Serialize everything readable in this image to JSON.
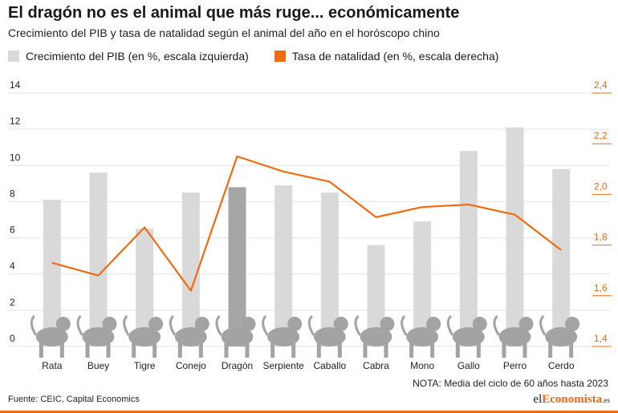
{
  "header": {
    "title": "El dragón no es el animal que más ruge... económicamente",
    "subtitle": "Crecimiento del PIB y tasa de natalidad según el animal del año en el horóscopo chino"
  },
  "legend": {
    "bars_label": "Crecimiento del PIB (en %, escala izquierda)",
    "line_label": "Tasa de natalidad (en %, escala derecha)"
  },
  "colors": {
    "bar": "#d9d9d9",
    "bar_highlight": "#a6a6a6",
    "line": "#f26a0f",
    "grid": "#e3e3e3",
    "animal": "#a3a3a3"
  },
  "footer": {
    "note": "NOTA: Media del ciclo de 60 años hasta 2023",
    "source": "Fuente: CEIC, Capital Economics",
    "logo_el": "el",
    "logo_brand": "Economista",
    "logo_suffix": ".es"
  },
  "chart_data": {
    "type": "bar",
    "categories": [
      "Rata",
      "Buey",
      "Tigre",
      "Conejo",
      "Dragón",
      "Serpiente",
      "Caballo",
      "Cabra",
      "Mono",
      "Gallo",
      "Perro",
      "Cerdo"
    ],
    "highlight_category": "Dragón",
    "series": [
      {
        "name": "Crecimiento del PIB (en %, escala izquierda)",
        "type": "bar",
        "axis": "left",
        "values": [
          8.1,
          9.6,
          6.5,
          8.5,
          8.8,
          8.9,
          8.5,
          5.6,
          6.9,
          10.8,
          12.1,
          9.8
        ]
      },
      {
        "name": "Tasa de natalidad (en %, escala derecha)",
        "type": "line",
        "axis": "right",
        "values": [
          1.73,
          1.68,
          1.87,
          1.62,
          2.15,
          2.09,
          2.05,
          1.91,
          1.95,
          1.96,
          1.92,
          1.78
        ]
      }
    ],
    "y_left": {
      "ylim": [
        0,
        14
      ],
      "ticks": [
        "0",
        "2",
        "4",
        "6",
        "8",
        "10",
        "12",
        "14"
      ]
    },
    "y_right": {
      "ylim": [
        1.4,
        2.4
      ],
      "ticks": [
        "1,4",
        "1,6",
        "1,8",
        "2,0",
        "2,2",
        "2,4"
      ]
    },
    "grid": true,
    "legend_position": "top-left"
  }
}
